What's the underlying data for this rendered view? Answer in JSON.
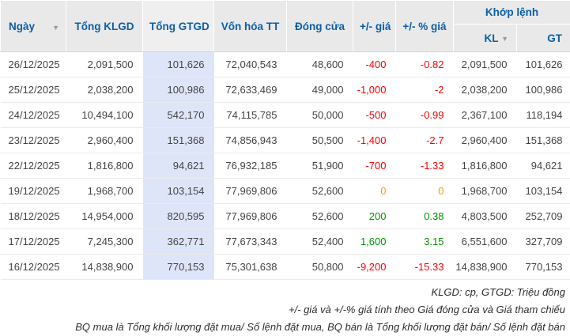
{
  "colors": {
    "header_text": "#0b5ea8",
    "header_bg": "#e9e9e9",
    "highlight_column_bg": "#dfe5f9",
    "negative": "#fe0000",
    "positive": "#009400",
    "zero": "#ff9900"
  },
  "table": {
    "headers": {
      "date": "Ngày",
      "total_volume": "Tổng KLGD",
      "total_value": "Tổng GTGD",
      "market_cap": "Vốn hóa TT",
      "close": "Đóng cửa",
      "price_change": "+/- giá",
      "price_change_pct": "+/- % giá",
      "matched_group": "Khớp lệnh",
      "matched_volume": "KL",
      "matched_value": "GT"
    },
    "sort_icons": {
      "date": "▼",
      "matched_volume": "▼"
    },
    "rows": [
      {
        "date": "26/12/2025",
        "total_volume": "2,091,500",
        "total_value": "101,626",
        "market_cap": "72,040,543",
        "close": "48,600",
        "price_change": "-400",
        "price_change_pct": "-0.82",
        "matched_volume": "2,091,500",
        "matched_value": "101,626"
      },
      {
        "date": "25/12/2025",
        "total_volume": "2,038,200",
        "total_value": "100,986",
        "market_cap": "72,633,469",
        "close": "49,000",
        "price_change": "-1,000",
        "price_change_pct": "-2",
        "matched_volume": "2,038,200",
        "matched_value": "100,986"
      },
      {
        "date": "24/12/2025",
        "total_volume": "10,494,100",
        "total_value": "542,170",
        "market_cap": "74,115,785",
        "close": "50,000",
        "price_change": "-500",
        "price_change_pct": "-0.99",
        "matched_volume": "2,367,100",
        "matched_value": "118,194"
      },
      {
        "date": "23/12/2025",
        "total_volume": "2,960,400",
        "total_value": "151,368",
        "market_cap": "74,856,943",
        "close": "50,500",
        "price_change": "-1,400",
        "price_change_pct": "-2.7",
        "matched_volume": "2,960,400",
        "matched_value": "151,368"
      },
      {
        "date": "22/12/2025",
        "total_volume": "1,816,800",
        "total_value": "94,621",
        "market_cap": "76,932,185",
        "close": "51,900",
        "price_change": "-700",
        "price_change_pct": "-1.33",
        "matched_volume": "1,816,800",
        "matched_value": "94,621"
      },
      {
        "date": "19/12/2025",
        "total_volume": "1,968,700",
        "total_value": "103,154",
        "market_cap": "77,969,806",
        "close": "52,600",
        "price_change": "0",
        "price_change_pct": "0",
        "matched_volume": "1,968,700",
        "matched_value": "103,154"
      },
      {
        "date": "18/12/2025",
        "total_volume": "14,954,000",
        "total_value": "820,595",
        "market_cap": "77,969,806",
        "close": "52,600",
        "price_change": "200",
        "price_change_pct": "0.38",
        "matched_volume": "4,803,500",
        "matched_value": "252,709"
      },
      {
        "date": "17/12/2025",
        "total_volume": "7,245,300",
        "total_value": "362,771",
        "market_cap": "77,673,343",
        "close": "52,400",
        "price_change": "1,600",
        "price_change_pct": "3.15",
        "matched_volume": "6,551,600",
        "matched_value": "327,709"
      },
      {
        "date": "16/12/2025",
        "total_volume": "14,838,900",
        "total_value": "770,153",
        "market_cap": "75,301,638",
        "close": "50,800",
        "price_change": "-9,200",
        "price_change_pct": "-15.33",
        "matched_volume": "14,838,900",
        "matched_value": "770,153"
      }
    ]
  },
  "footnotes": [
    "KLGD: cp, GTGD: Triệu đồng",
    "+/- giá và +/-% giá tính theo Giá đóng cửa và Giá tham chiếu",
    "BQ mua là Tổng khối lượng đặt mua/ Số lệnh đặt mua, BQ bán là Tổng khối lượng đặt bán/ Số lệnh đặt bán"
  ]
}
